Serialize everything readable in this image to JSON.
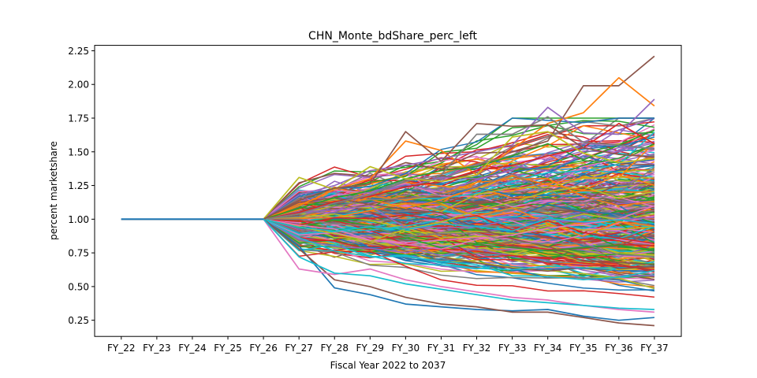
{
  "chart_data": {
    "type": "line",
    "title": "CHN_Monte_bdShare_perc_left",
    "xlabel": "Fiscal Year 2022 to 2037",
    "ylabel": "percent marketshare",
    "categories": [
      "FY_22",
      "FY_23",
      "FY_24",
      "FY_25",
      "FY_26",
      "FY_27",
      "FY_28",
      "FY_29",
      "FY_30",
      "FY_31",
      "FY_32",
      "FY_33",
      "FY_34",
      "FY_35",
      "FY_36",
      "FY_37"
    ],
    "ylim": [
      0.13,
      2.29
    ],
    "yticks": [
      0.25,
      0.5,
      0.75,
      1.0,
      1.25,
      1.5,
      1.75,
      2.0,
      2.25
    ],
    "ytick_labels": [
      "0.25",
      "0.50",
      "0.75",
      "1.00",
      "1.25",
      "1.50",
      "1.75",
      "2.00",
      "2.25"
    ],
    "grid": false,
    "legend": "none",
    "series_note_values": "Monte Carlo simulation: all series are 1.00 from FY_22 to FY_26, then diverge",
    "highlighted_series": [
      {
        "color": "#8c564b",
        "values": [
          1,
          1,
          1,
          1,
          1,
          1.27,
          1.34,
          1.32,
          1.42,
          1.37,
          1.49,
          1.5,
          1.58,
          1.99,
          1.99,
          2.21
        ]
      },
      {
        "color": "#ff7f0e",
        "values": [
          1,
          1,
          1,
          1,
          1,
          1.1,
          1.22,
          1.3,
          1.58,
          1.51,
          1.33,
          1.52,
          1.71,
          1.79,
          2.05,
          1.84
        ]
      },
      {
        "color": "#9467bd",
        "values": [
          1,
          1,
          1,
          1,
          1,
          1.18,
          1.25,
          1.36,
          1.4,
          1.45,
          1.5,
          1.55,
          1.83,
          1.64,
          1.63,
          1.89
        ]
      },
      {
        "color": "#2ca02c",
        "values": [
          1,
          1,
          1,
          1,
          1,
          1.08,
          1.16,
          1.21,
          1.3,
          1.36,
          1.39,
          1.47,
          1.56,
          1.44,
          1.55,
          1.66
        ]
      },
      {
        "color": "#d62728",
        "values": [
          1,
          1,
          1,
          1,
          1,
          1.05,
          1.13,
          1.17,
          1.24,
          1.28,
          1.36,
          1.4,
          1.47,
          1.53,
          1.71,
          1.56
        ]
      },
      {
        "color": "#7f7f7f",
        "values": [
          1,
          1,
          1,
          1,
          1,
          1.04,
          1.12,
          1.18,
          1.28,
          1.33,
          1.63,
          1.63,
          1.76,
          1.57,
          1.55,
          1.52
        ]
      },
      {
        "color": "#bcbd22",
        "values": [
          1,
          1,
          1,
          1,
          1,
          1.31,
          1.22,
          1.39,
          1.3,
          1.28,
          1.33,
          1.61,
          1.65,
          1.49,
          1.42,
          1.45
        ]
      },
      {
        "color": "#8c564b",
        "values": [
          1,
          1,
          1,
          1,
          1,
          1.14,
          1.23,
          1.26,
          1.65,
          1.43,
          1.71,
          1.69,
          1.7,
          1.53,
          1.48,
          1.46
        ]
      },
      {
        "color": "#1f77b4",
        "values": [
          1,
          1,
          1,
          1,
          1,
          0.8,
          0.49,
          0.44,
          0.37,
          0.35,
          0.33,
          0.32,
          0.33,
          0.28,
          0.25,
          0.27
        ]
      },
      {
        "color": "#8c564b",
        "values": [
          1,
          1,
          1,
          1,
          1,
          0.78,
          0.55,
          0.5,
          0.42,
          0.37,
          0.35,
          0.31,
          0.31,
          0.27,
          0.23,
          0.21
        ]
      },
      {
        "color": "#e377c2",
        "values": [
          1,
          1,
          1,
          1,
          1,
          0.63,
          0.59,
          0.63,
          0.55,
          0.5,
          0.46,
          0.42,
          0.4,
          0.36,
          0.33,
          0.31
        ]
      },
      {
        "color": "#17becf",
        "values": [
          1,
          1,
          1,
          1,
          1,
          0.72,
          0.6,
          0.58,
          0.52,
          0.48,
          0.44,
          0.4,
          0.38,
          0.36,
          0.34,
          0.33
        ]
      }
    ],
    "palette": [
      "#1f77b4",
      "#ff7f0e",
      "#2ca02c",
      "#d62728",
      "#9467bd",
      "#8c564b",
      "#e377c2",
      "#7f7f7f",
      "#bcbd22",
      "#17becf"
    ],
    "main_series_color": "#1f77b4"
  }
}
